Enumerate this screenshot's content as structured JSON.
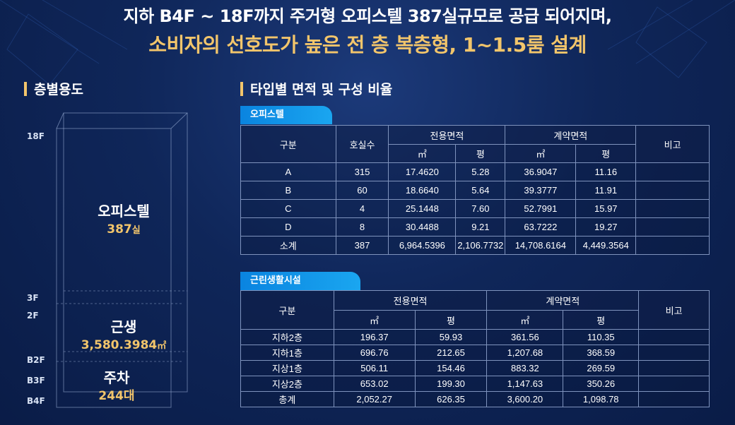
{
  "headline": {
    "line1": "지하 B4F ~ 18F까지 주거형 오피스텔 387실규모로 공급 되어지며,",
    "line2": "소비자의 선호도가 높은  전 층 복층형, 1~1.5룸 설계"
  },
  "floor_section": {
    "title": "층별용도",
    "floors": [
      "18F",
      "3F",
      "2F",
      "B2F",
      "B3F",
      "B4F"
    ],
    "uses": [
      {
        "name": "오피스텔",
        "value": "387",
        "unit": "실"
      },
      {
        "name": "근생",
        "value": "3,580.3984",
        "unit": "㎡"
      },
      {
        "name": "주차",
        "value": "244",
        "unit": "대"
      }
    ]
  },
  "table_section": {
    "title": "타입별 면적 및 구성 비율",
    "officetel": {
      "tab": "오피스텔",
      "headers": {
        "division": "구분",
        "units": "호실수",
        "exclusive": "전용면적",
        "contract": "계약면적",
        "sqm": "㎡",
        "pyeong": "평",
        "remark": "비고"
      },
      "rows": [
        [
          "A",
          "315",
          "17.4620",
          "5.28",
          "36.9047",
          "11.16",
          ""
        ],
        [
          "B",
          "60",
          "18.6640",
          "5.64",
          "39.3777",
          "11.91",
          ""
        ],
        [
          "C",
          "4",
          "25.1448",
          "7.60",
          "52.7991",
          "15.97",
          ""
        ],
        [
          "D",
          "8",
          "30.4488",
          "9.21",
          "63.7222",
          "19.27",
          ""
        ],
        [
          "소계",
          "387",
          "6,964.5396",
          "2,106.7732",
          "14,708.6164",
          "4,449.3564",
          ""
        ]
      ]
    },
    "retail": {
      "tab": "근린생활시설",
      "headers": {
        "division": "구분",
        "exclusive": "전용면적",
        "contract": "계약면적",
        "sqm": "㎡",
        "pyeong": "평",
        "remark": "비고"
      },
      "rows": [
        [
          "지하2층",
          "196.37",
          "59.93",
          "361.56",
          "110.35",
          ""
        ],
        [
          "지하1층",
          "696.76",
          "212.65",
          "1,207.68",
          "368.59",
          ""
        ],
        [
          "지상1층",
          "506.11",
          "154.46",
          "883.32",
          "269.59",
          ""
        ],
        [
          "지상2층",
          "653.02",
          "199.30",
          "1,147.63",
          "350.26",
          ""
        ],
        [
          "총계",
          "2,052.27",
          "626.35",
          "3,600.20",
          "1,098.78",
          ""
        ]
      ]
    }
  },
  "colors": {
    "accent": "#f2c56b",
    "tab": "#0a84e0",
    "background": "#0f2659"
  }
}
